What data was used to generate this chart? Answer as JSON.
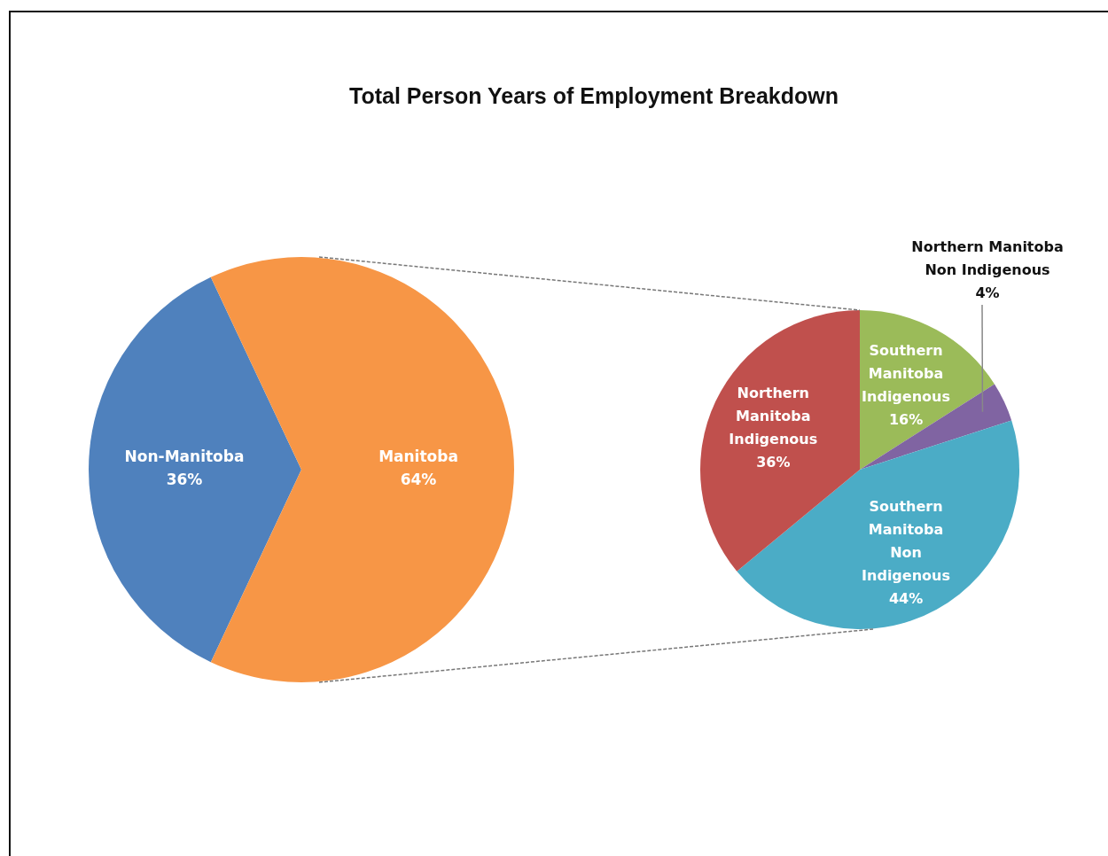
{
  "chart_data": [
    {
      "type": "pie",
      "title": "Total Person Years of Employment Breakdown",
      "categories": [
        "Non-Manitoba",
        "Manitoba"
      ],
      "values": [
        36,
        64
      ],
      "value_labels": [
        "36%",
        "64%"
      ],
      "colors": [
        "#4f81bd",
        "#f79646"
      ],
      "legend": false
    },
    {
      "type": "pie",
      "categories": [
        "Southern Manitoba Indigenous",
        "Northern Manitoba Non Indigenous",
        "Southern Manitoba Non Indigenous",
        "Northern Manitoba Indigenous"
      ],
      "values": [
        16,
        4,
        44,
        36
      ],
      "value_labels": [
        "16%",
        "4%",
        "44%",
        "36%"
      ],
      "colors": [
        "#9bbb59",
        "#8064a2",
        "#4bacc6",
        "#c0504d"
      ],
      "legend": false
    }
  ]
}
